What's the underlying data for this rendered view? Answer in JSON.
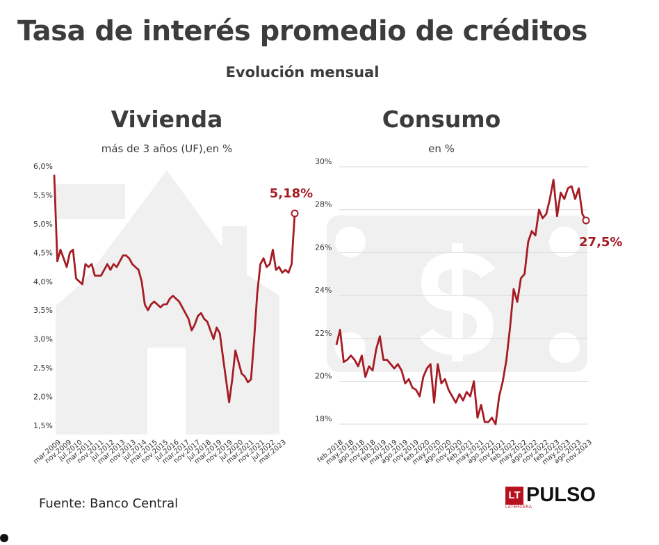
{
  "header": {
    "title": "Tasa de interés promedio de créditos",
    "subtitle": "Evolución mensual"
  },
  "footer": {
    "source": "Fuente: Banco Central",
    "logo_badge": "LT",
    "logo_word": "PULSO",
    "logo_small": "LATERCERA"
  },
  "colors": {
    "line": "#a51c24",
    "grid": "#d9d9d9",
    "watermark": "#f0f0f0"
  },
  "chart_data": [
    {
      "type": "line",
      "title": "Vivienda",
      "subtitle": "más de 3 años (UF),en %",
      "watermark_icon": "house-icon",
      "ylim": [
        1.5,
        6.0
      ],
      "yticks": [
        "1,5%",
        "2,0%",
        "2,5%",
        "3,0%",
        "3,5%",
        "4,0%",
        "4,5%",
        "5,0%",
        "5,5%",
        "6,0%"
      ],
      "ytick_values": [
        1.5,
        2.0,
        2.5,
        3.0,
        3.5,
        4.0,
        4.5,
        5.0,
        5.5,
        6.0
      ],
      "grid": false,
      "xticks": [
        "mar.2009",
        "nov.2009",
        "jul.2010",
        "mar.2011",
        "nov.2011",
        "jul.2012",
        "mar.2013",
        "nov.2013",
        "jul.2014",
        "mar.2015",
        "nov.2015",
        "jul.2016",
        "mar.2017",
        "nov.2017",
        "jul.2018",
        "mar.2019",
        "nov.2019",
        "jul.2020",
        "mar.2021",
        "nov.2021",
        "jul.2022",
        "mar.2023"
      ],
      "last_label": "5,18%",
      "series": [
        {
          "values": [
            5.85,
            4.35,
            4.55,
            4.4,
            4.25,
            4.5,
            4.55,
            4.05,
            4.0,
            3.95,
            4.3,
            4.25,
            4.3,
            4.1,
            4.1,
            4.1,
            4.2,
            4.3,
            4.2,
            4.3,
            4.25,
            4.35,
            4.45,
            4.45,
            4.4,
            4.3,
            4.25,
            4.2,
            4.0,
            3.6,
            3.5,
            3.6,
            3.65,
            3.6,
            3.55,
            3.6,
            3.6,
            3.7,
            3.75,
            3.7,
            3.65,
            3.55,
            3.45,
            3.35,
            3.15,
            3.25,
            3.4,
            3.45,
            3.35,
            3.3,
            3.15,
            3.0,
            3.2,
            3.1,
            2.7,
            2.3,
            1.9,
            2.3,
            2.8,
            2.6,
            2.4,
            2.35,
            2.25,
            2.3,
            3.0,
            3.8,
            4.3,
            4.4,
            4.25,
            4.3,
            4.55,
            4.2,
            4.25,
            4.15,
            4.2,
            4.15,
            4.3,
            5.18
          ]
        }
      ]
    },
    {
      "type": "line",
      "title": "Consumo",
      "subtitle": "en %",
      "watermark_icon": "dollar-icon",
      "ylim": [
        17,
        30
      ],
      "yticks": [
        "18%",
        "20%",
        "22%",
        "24%",
        "26%",
        "28%",
        "30%"
      ],
      "ytick_values": [
        18,
        20,
        22,
        24,
        26,
        28,
        30
      ],
      "grid": true,
      "xticks": [
        "feb.2018",
        "may.2018",
        "ago.2018",
        "nov.2018",
        "feb.2019",
        "may.2019",
        "ago.2019",
        "nov.2019",
        "feb.2020",
        "may.2020",
        "ago.2020",
        "nov.2020",
        "feb.2021",
        "may.2021",
        "ago.2021",
        "nov.2021",
        "feb.2022",
        "may.2022",
        "ago.2022",
        "nov.2022",
        "feb.2023",
        "may.2023",
        "ago.2023",
        "nov.2023"
      ],
      "last_label": "27,5%",
      "series": [
        {
          "values": [
            21.7,
            22.4,
            20.9,
            21.0,
            21.2,
            21.0,
            20.7,
            21.2,
            20.2,
            20.7,
            20.5,
            21.5,
            22.1,
            21.0,
            21.0,
            20.8,
            20.6,
            20.8,
            20.5,
            19.9,
            20.1,
            19.7,
            19.6,
            19.3,
            20.2,
            20.6,
            20.8,
            19.0,
            20.8,
            19.9,
            20.1,
            19.6,
            19.3,
            19.0,
            19.4,
            19.1,
            19.5,
            19.3,
            20.0,
            18.3,
            18.9,
            18.1,
            18.1,
            18.3,
            18.0,
            19.3,
            20.0,
            21.0,
            22.5,
            24.3,
            23.7,
            24.8,
            25.0,
            26.5,
            27.0,
            26.8,
            28.0,
            27.6,
            27.8,
            28.5,
            29.4,
            27.7,
            28.8,
            28.5,
            29.0,
            29.1,
            28.5,
            29.0,
            27.8,
            27.5
          ]
        }
      ]
    }
  ]
}
